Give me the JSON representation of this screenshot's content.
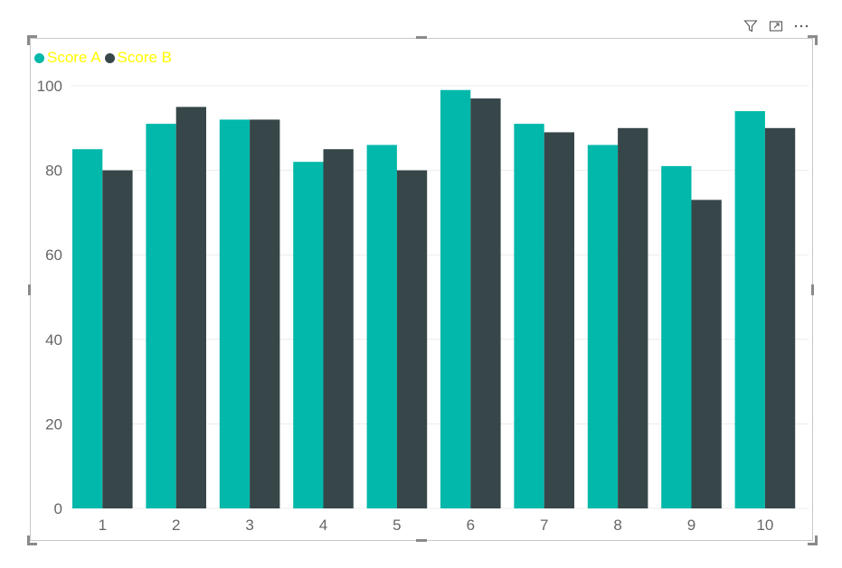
{
  "header": {
    "icons": [
      "filter-icon",
      "focus-mode-icon",
      "more-options-icon"
    ]
  },
  "legend": {
    "items": [
      {
        "label": "Score A",
        "color": "#01B8AA"
      },
      {
        "label": "Score B",
        "color": "#374649"
      }
    ],
    "text_color": "#FFFF00"
  },
  "chart_data": {
    "type": "bar",
    "categories": [
      "1",
      "2",
      "3",
      "4",
      "5",
      "6",
      "7",
      "8",
      "9",
      "10"
    ],
    "series": [
      {
        "name": "Score A",
        "color": "#01B8AA",
        "values": [
          85,
          91,
          92,
          82,
          86,
          99,
          91,
          86,
          81,
          94
        ]
      },
      {
        "name": "Score B",
        "color": "#374649",
        "values": [
          80,
          95,
          92,
          85,
          80,
          97,
          89,
          90,
          73,
          90
        ]
      }
    ],
    "title": "",
    "xlabel": "",
    "ylabel": "",
    "ylim": [
      0,
      100
    ],
    "yticks": [
      0,
      20,
      40,
      60,
      80,
      100
    ],
    "grid": true,
    "legend_position": "top-left"
  }
}
